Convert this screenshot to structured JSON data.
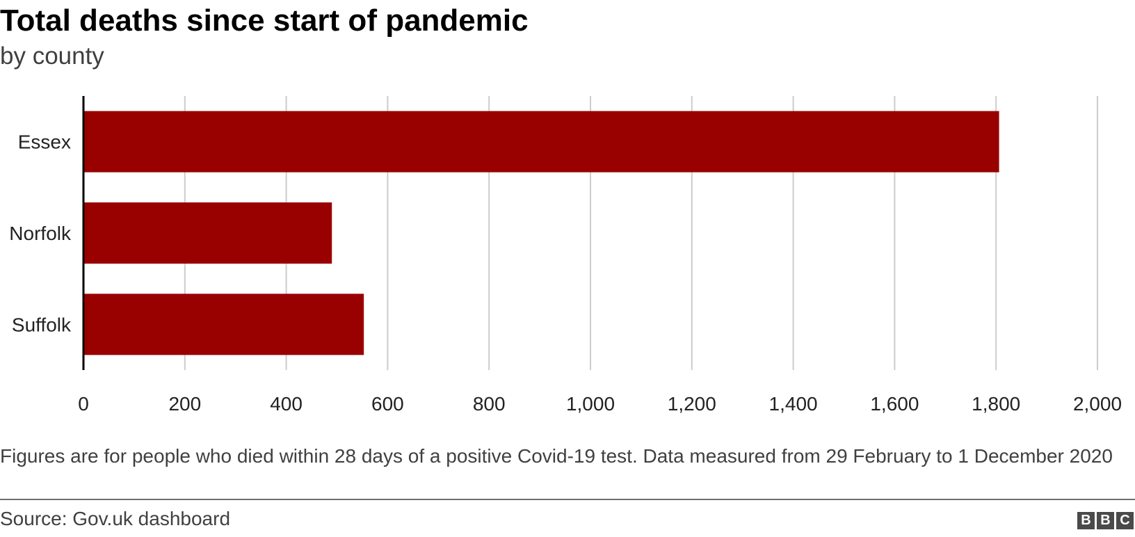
{
  "chart_data": {
    "type": "bar",
    "orientation": "horizontal",
    "title": "Total deaths since start of pandemic",
    "subtitle": "by county",
    "categories": [
      "Essex",
      "Norfolk",
      "Suffolk"
    ],
    "values": [
      1806,
      490,
      553
    ],
    "xlim": [
      0,
      2000
    ],
    "x_ticks": [
      0,
      200,
      400,
      600,
      800,
      1000,
      1200,
      1400,
      1600,
      1800,
      2000
    ],
    "x_tick_labels": [
      "0",
      "200",
      "400",
      "600",
      "800",
      "1,000",
      "1,200",
      "1,400",
      "1,600",
      "1,800",
      "2,000"
    ],
    "grid": "vertical",
    "bar_color": "#990000",
    "grid_color": "#cccccc"
  },
  "note": "Figures are for people who died within 28 days of a positive Covid-19 test. Data measured from 29 February to 1 December 2020",
  "source": "Source: Gov.uk dashboard",
  "logo": {
    "icon": "bbc-logo-icon",
    "letters": [
      "B",
      "B",
      "C"
    ]
  }
}
